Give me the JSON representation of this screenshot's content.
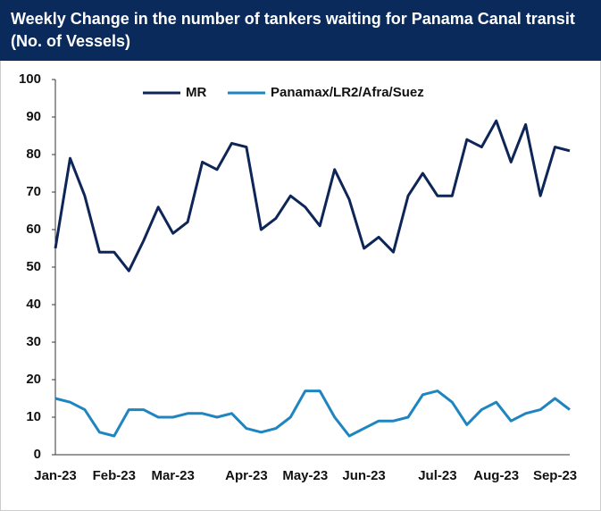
{
  "chart_data": {
    "type": "line",
    "title": "Weekly Change in the number of tankers waiting for Panama Canal transit (No. of Vessels)",
    "categories": [
      "Jan-23",
      null,
      null,
      null,
      "Feb-23",
      null,
      null,
      null,
      "Mar-23",
      null,
      null,
      null,
      null,
      "Apr-23",
      null,
      null,
      null,
      "May-23",
      null,
      null,
      null,
      "Jun-23",
      null,
      null,
      null,
      null,
      "Jul-23",
      null,
      null,
      null,
      "Aug-23",
      null,
      null,
      null,
      "Sep-23",
      null
    ],
    "series": [
      {
        "name": "MR",
        "color": "#0d2557",
        "values": [
          55,
          79,
          69,
          54,
          54,
          49,
          57,
          66,
          59,
          62,
          78,
          76,
          83,
          82,
          60,
          63,
          69,
          66,
          61,
          76,
          68,
          55,
          58,
          54,
          69,
          75,
          69,
          69,
          84,
          82,
          89,
          78,
          88,
          69,
          82,
          81
        ]
      },
      {
        "name": "Panamax/LR2/Afra/Suez",
        "color": "#1f85c0",
        "values": [
          15,
          14,
          12,
          6,
          5,
          12,
          12,
          10,
          10,
          11,
          11,
          10,
          11,
          7,
          6,
          7,
          10,
          17,
          17,
          10,
          5,
          7,
          9,
          9,
          10,
          16,
          17,
          14,
          8,
          12,
          14,
          9,
          11,
          12,
          15,
          12
        ]
      }
    ],
    "ylim": [
      0,
      100
    ],
    "yticks": [
      0,
      10,
      20,
      30,
      40,
      50,
      60,
      70,
      80,
      90,
      100
    ],
    "grid": false,
    "legend": "top"
  }
}
